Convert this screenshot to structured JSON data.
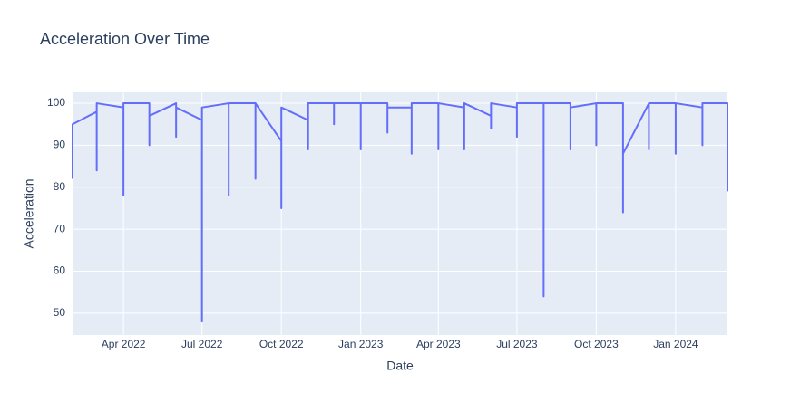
{
  "chart_data": {
    "type": "line",
    "title": "Acceleration Over Time",
    "x_label": "Date",
    "y_label": "Acceleration",
    "x": [
      "2022-02-01",
      "2022-02-01",
      "2022-03-01",
      "2022-03-01",
      "2022-03-01",
      "2022-04-01",
      "2022-04-01",
      "2022-04-01",
      "2022-05-01",
      "2022-05-01",
      "2022-05-01",
      "2022-06-01",
      "2022-06-01",
      "2022-06-01",
      "2022-07-01",
      "2022-07-01",
      "2022-07-01",
      "2022-08-01",
      "2022-08-01",
      "2022-08-01",
      "2022-09-01",
      "2022-09-01",
      "2022-09-01",
      "2022-10-01",
      "2022-10-01",
      "2022-10-01",
      "2022-11-01",
      "2022-11-01",
      "2022-11-01",
      "2022-12-01",
      "2022-12-01",
      "2022-12-01",
      "2023-01-01",
      "2023-01-01",
      "2023-01-01",
      "2023-02-01",
      "2023-02-01",
      "2023-02-01",
      "2023-03-01",
      "2023-03-01",
      "2023-03-01",
      "2023-04-01",
      "2023-04-01",
      "2023-04-01",
      "2023-05-01",
      "2023-05-01",
      "2023-05-01",
      "2023-06-01",
      "2023-06-01",
      "2023-06-01",
      "2023-07-01",
      "2023-07-01",
      "2023-07-01",
      "2023-08-01",
      "2023-08-01",
      "2023-08-01",
      "2023-09-01",
      "2023-09-01",
      "2023-09-01",
      "2023-10-01",
      "2023-10-01",
      "2023-10-01",
      "2023-11-01",
      "2023-11-01",
      "2023-11-01",
      "2023-12-01",
      "2023-12-01",
      "2023-12-01",
      "2024-01-01",
      "2024-01-01",
      "2024-01-01",
      "2024-02-01",
      "2024-02-01",
      "2024-02-01",
      "2024-03-01",
      "2024-03-01"
    ],
    "values": [
      82,
      95,
      98,
      84,
      100,
      99,
      78,
      100,
      100,
      90,
      97,
      100,
      92,
      99,
      96,
      48,
      99,
      100,
      78,
      100,
      100,
      82,
      100,
      91,
      75,
      99,
      96,
      89,
      100,
      100,
      95,
      100,
      100,
      89,
      100,
      100,
      93,
      99,
      99,
      88,
      100,
      100,
      89,
      100,
      99,
      89,
      100,
      97,
      94,
      100,
      99,
      92,
      100,
      100,
      54,
      100,
      100,
      89,
      99,
      100,
      90,
      100,
      100,
      74,
      88,
      100,
      89,
      100,
      100,
      88,
      100,
      99,
      90,
      100,
      100,
      79
    ],
    "color": "#636efa",
    "xlim": [
      "2022-02-01",
      "2024-03-01"
    ],
    "xticks": [
      {
        "value": "2022-04-01",
        "label": "Apr 2022"
      },
      {
        "value": "2022-07-01",
        "label": "Jul 2022"
      },
      {
        "value": "2022-10-01",
        "label": "Oct 2022"
      },
      {
        "value": "2023-01-01",
        "label": "Jan 2023"
      },
      {
        "value": "2023-04-01",
        "label": "Apr 2023"
      },
      {
        "value": "2023-07-01",
        "label": "Jul 2023"
      },
      {
        "value": "2023-10-01",
        "label": "Oct 2023"
      },
      {
        "value": "2024-01-01",
        "label": "Jan 2024"
      }
    ],
    "ylim": [
      44.8,
      102.6
    ],
    "yticks": [
      50,
      60,
      70,
      80,
      90,
      100
    ],
    "grid": true
  }
}
